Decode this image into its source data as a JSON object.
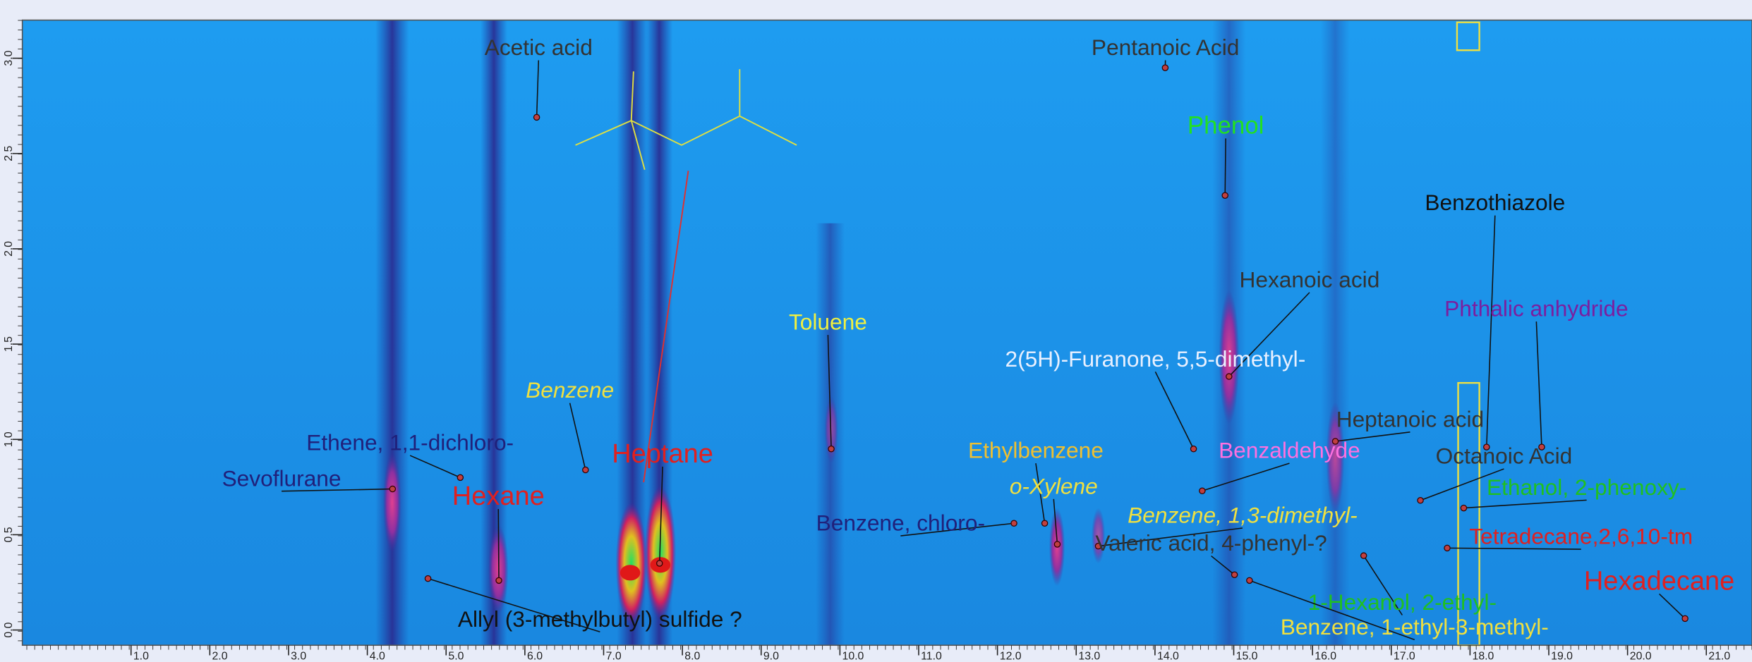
{
  "chart_data": {
    "type": "peak-map",
    "xlim": [
      -0.38,
      21.58
    ],
    "ylim": [
      -0.08,
      3.2
    ],
    "xticks": [
      {
        "value": 1,
        "label": "1.0"
      },
      {
        "value": 2,
        "label": "2.0"
      },
      {
        "value": 3,
        "label": "3.0"
      },
      {
        "value": 4,
        "label": "4.0"
      },
      {
        "value": 5,
        "label": "5.0"
      },
      {
        "value": 6,
        "label": "6.0"
      },
      {
        "value": 7,
        "label": "7.0"
      },
      {
        "value": 8,
        "label": "8.0"
      },
      {
        "value": 9,
        "label": "9.0"
      },
      {
        "value": 10,
        "label": "10.0"
      },
      {
        "value": 11,
        "label": "11.0"
      },
      {
        "value": 12,
        "label": "12.0"
      },
      {
        "value": 13,
        "label": "13.0"
      },
      {
        "value": 14,
        "label": "14.0"
      },
      {
        "value": 15,
        "label": "15.0"
      },
      {
        "value": 16,
        "label": "16.0"
      },
      {
        "value": 17,
        "label": "17.0"
      },
      {
        "value": 18,
        "label": "18.0"
      },
      {
        "value": 19,
        "label": "19.0"
      },
      {
        "value": 20,
        "label": "20.0"
      },
      {
        "value": 21,
        "label": "21.0"
      }
    ],
    "yticks": [
      {
        "value": 0,
        "label": "0.0"
      },
      0.5,
      {
        "value": 1,
        "label": "1.0"
      },
      1.5,
      {
        "value": 2,
        "label": "2.0"
      },
      2.5,
      {
        "value": 3,
        "label": "3.0"
      }
    ],
    "peaks": [
      {
        "label": "Acetic acid",
        "x": 6.15,
        "y": 2.69,
        "color": "#333333"
      },
      {
        "label": "Pentanoic Acid",
        "x": 14.13,
        "y": 2.95,
        "color": "#333333"
      },
      {
        "label": "Phenol",
        "x": 14.89,
        "y": 2.28,
        "color": "#22e022"
      },
      {
        "label": "Benzothiazole",
        "x": 18.21,
        "y": 0.96,
        "color": "#111111"
      },
      {
        "label": "Hexanoic acid",
        "x": 14.94,
        "y": 1.33,
        "color": "#333333"
      },
      {
        "label": "Phthalic anhydride",
        "x": 18.91,
        "y": 0.96,
        "color": "#7a1fa0"
      },
      {
        "label": "Toluene",
        "x": 9.89,
        "y": 0.95,
        "color": "#f0f040"
      },
      {
        "label": "2(5H)-Furanone, 5,5-dimethyl-",
        "x": 14.49,
        "y": 0.95,
        "color": "#e8f0ff"
      },
      {
        "label": "Benzene",
        "x": 6.77,
        "y": 0.84,
        "color": "#f0e040"
      },
      {
        "label": "Heptanoic acid",
        "x": 16.29,
        "y": 0.99,
        "color": "#333333"
      },
      {
        "label": "Ethene, 1,1-dichloro-",
        "x": 5.18,
        "y": 0.8,
        "color": "#20207a"
      },
      {
        "label": "Ethylbenzene",
        "x": 12.6,
        "y": 0.56,
        "color": "#f0c030"
      },
      {
        "label": "Benzaldehyde",
        "x": 14.6,
        "y": 0.73,
        "color": "#ff70e0"
      },
      {
        "label": "Heptane",
        "x": 7.71,
        "y": 0.35,
        "color": "#e02020"
      },
      {
        "label": "Octanoic Acid",
        "x": 17.37,
        "y": 0.68,
        "color": "#333333"
      },
      {
        "label": "Sevoflurane",
        "x": 4.32,
        "y": 0.74,
        "color": "#20207a"
      },
      {
        "label": "Hexane",
        "x": 5.67,
        "y": 0.26,
        "color": "#e02020"
      },
      {
        "label": "o-Xylene",
        "x": 12.76,
        "y": 0.45,
        "color": "#f0e040"
      },
      {
        "label": "Ethanol, 2-phenoxy-",
        "x": 17.92,
        "y": 0.64,
        "color": "#20c020"
      },
      {
        "label": "Benzene, 1,3-dimethyl-",
        "x": 13.28,
        "y": 0.44,
        "color": "#f0e040"
      },
      {
        "label": "Benzene, chloro-",
        "x": 12.21,
        "y": 0.56,
        "color": "#20207a"
      },
      {
        "label": "Tetradecane,2,6,10-tm",
        "x": 17.71,
        "y": 0.43,
        "color": "#e02020"
      },
      {
        "label": "Valeric acid, 4-phenyl-?",
        "x": 15.01,
        "y": 0.29,
        "color": "#333333"
      },
      {
        "label": "Hexadecane",
        "x": 20.73,
        "y": 0.06,
        "color": "#e02020"
      },
      {
        "label": "1-Hexanol, 2-ethyl-",
        "x": 16.65,
        "y": 0.39,
        "color": "#20c020"
      },
      {
        "label": "Benzene, 1-ethyl-3-methyl-",
        "x": 15.2,
        "y": 0.26,
        "color": "#f0e040"
      },
      {
        "label": "Allyl (3-methylbutyl) sulfide ?",
        "x": 4.77,
        "y": 0.27,
        "color": "#111111"
      }
    ]
  }
}
